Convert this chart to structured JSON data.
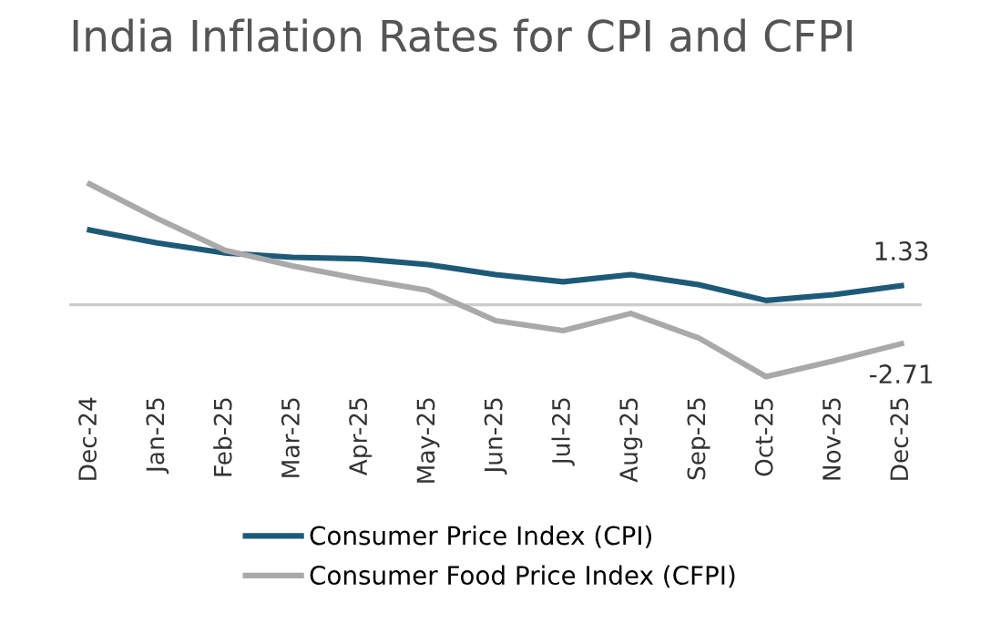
{
  "chart_data": {
    "type": "line",
    "title": "India Inflation Rates for CPI and CFPI",
    "categories": [
      "Dec-24",
      "Jan-25",
      "Feb-25",
      "Mar-25",
      "Apr-25",
      "May-25",
      "Jun-25",
      "Jul-25",
      "Aug-25",
      "Sep-25",
      "Oct-25",
      "Nov-25",
      "Dec-25"
    ],
    "series": [
      {
        "name": "Consumer Price Index (CPI)",
        "color": "#1d5a78",
        "values": [
          5.2,
          4.3,
          3.6,
          3.3,
          3.2,
          2.8,
          2.1,
          1.6,
          2.1,
          1.4,
          0.3,
          0.7,
          1.33
        ],
        "value_labels": [
          null,
          null,
          null,
          null,
          null,
          null,
          null,
          null,
          null,
          null,
          null,
          null,
          "1.33"
        ]
      },
      {
        "name": "Consumer Food Price Index (CFPI)",
        "color": "#a9a9a9",
        "values": [
          8.4,
          6.0,
          3.8,
          2.7,
          1.8,
          1.0,
          -1.1,
          -1.8,
          -0.6,
          -2.3,
          -5.0,
          -3.9,
          -2.71
        ],
        "value_labels": [
          null,
          null,
          null,
          null,
          null,
          null,
          null,
          null,
          null,
          null,
          null,
          null,
          "-2.71"
        ]
      }
    ],
    "tick_labels": "x",
    "legend": "bottom",
    "grid": false,
    "marker": "none",
    "line_style": "solid"
  }
}
